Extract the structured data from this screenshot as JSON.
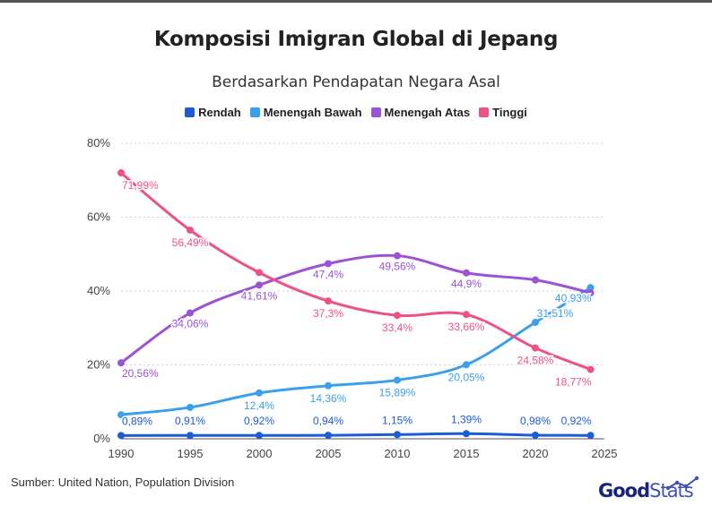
{
  "title": "Komposisi Imigran Global di Jepang",
  "subtitle": "Berdasarkan Pendapatan Negara Asal",
  "source": "Sumber: United Nation, Population Division",
  "logo": {
    "part1": "Good",
    "part2": "Stats"
  },
  "colors": {
    "rendah": "#1f5bd6",
    "menengah_bawah": "#3aa0ee",
    "menengah_atas": "#9b52d6",
    "tinggi": "#f0508a"
  },
  "chart_data": {
    "type": "line",
    "title": "Komposisi Imigran Global di Jepang",
    "subtitle": "Berdasarkan Pendapatan Negara Asal",
    "x": [
      1990,
      1995,
      2000,
      2005,
      2010,
      2015,
      2020,
      2024
    ],
    "x_ticks": [
      "1990",
      "1995",
      "2000",
      "2005",
      "2010",
      "2015",
      "2020",
      "2025"
    ],
    "x_tick_values": [
      1990,
      1995,
      2000,
      2005,
      2010,
      2015,
      2020,
      2025
    ],
    "xlim": [
      1990,
      2025
    ],
    "ylim": [
      0,
      80
    ],
    "y_ticks": [
      "0%",
      "20%",
      "40%",
      "60%",
      "80%"
    ],
    "y_tick_values": [
      0,
      20,
      40,
      60,
      80
    ],
    "grid": true,
    "legend_position": "top-center",
    "series": [
      {
        "name": "Rendah",
        "color": "#1f5bd6",
        "values": [
          0.89,
          0.91,
          0.92,
          0.94,
          1.15,
          1.39,
          0.98,
          0.92
        ],
        "labels": [
          "0,89%",
          "0,91%",
          "0,92%",
          "0,94%",
          "1,15%",
          "1,39%",
          "0,98%",
          "0,92%"
        ]
      },
      {
        "name": "Menengah Bawah",
        "color": "#3aa0ee",
        "values": [
          6.5,
          8.5,
          12.4,
          14.36,
          15.89,
          20.05,
          31.51,
          40.93
        ],
        "labels": [
          "",
          "",
          "12,4%",
          "14,36%",
          "15,89%",
          "20,05%",
          "31,51%",
          "40,93%"
        ]
      },
      {
        "name": "Menengah Atas",
        "color": "#9b52d6",
        "values": [
          20.56,
          34.06,
          41.61,
          47.4,
          49.56,
          44.9,
          43.0,
          39.5
        ],
        "labels": [
          "20,56%",
          "34,06%",
          "41,61%",
          "47,4%",
          "49,56%",
          "44,9%",
          "",
          ""
        ]
      },
      {
        "name": "Tinggi",
        "color": "#f0508a",
        "values": [
          71.99,
          56.49,
          45.0,
          37.3,
          33.4,
          33.66,
          24.58,
          18.77
        ],
        "labels": [
          "71,99%",
          "56,49%",
          "",
          "37,3%",
          "33,4%",
          "33,66%",
          "24,58%",
          "18,77%"
        ]
      }
    ]
  }
}
